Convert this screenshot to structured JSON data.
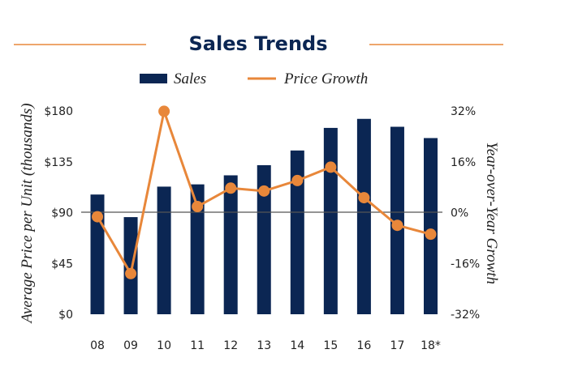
{
  "chart_data": {
    "type": "bar+line",
    "title": "Sales Trends",
    "categories": [
      "08",
      "09",
      "10",
      "11",
      "12",
      "13",
      "14",
      "15",
      "16",
      "17",
      "18*"
    ],
    "series": [
      {
        "name": "Sales",
        "type": "bar",
        "axis": "left",
        "color": "#0b2653",
        "values": [
          106,
          86,
          113,
          115,
          123,
          132,
          145,
          165,
          173,
          166,
          156
        ]
      },
      {
        "name": "Price Growth",
        "type": "line",
        "axis": "right",
        "color": "#e8873a",
        "values": [
          -1.3,
          -19.2,
          31.9,
          1.9,
          7.7,
          6.8,
          10.1,
          14.3,
          4.7,
          -4.0,
          -6.8
        ]
      }
    ],
    "ylabel": "Average Price per Unit (thousands)",
    "y2label": "Year-over-Year Growth",
    "ylim": [
      0,
      180
    ],
    "y2lim": [
      -32,
      32
    ],
    "yticks": [
      "$0",
      "$45",
      "$90",
      "$135",
      "$180"
    ],
    "y2ticks": [
      "-32%",
      "-16%",
      "0%",
      "16%",
      "32%"
    ],
    "legend_position": "top",
    "grid": false
  }
}
